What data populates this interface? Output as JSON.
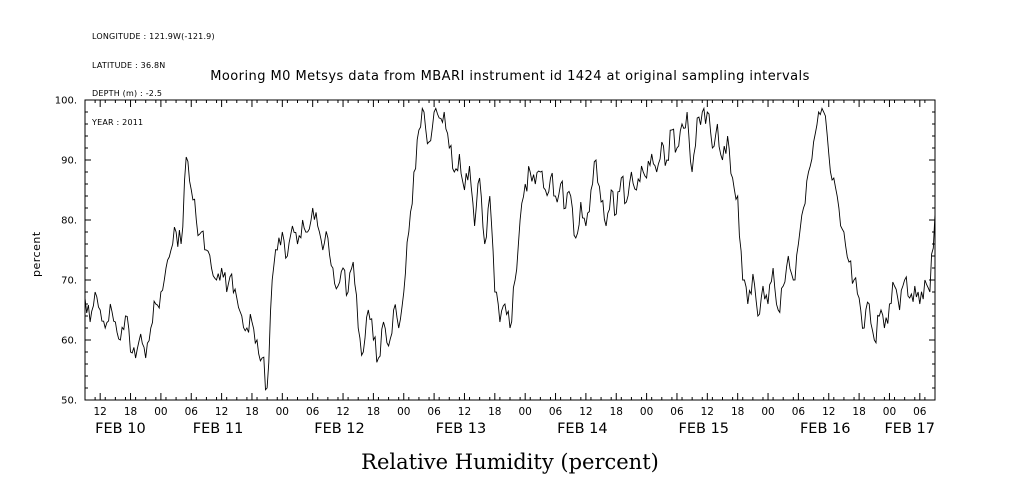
{
  "meta": {
    "lines": [
      "LONGITUDE : 121.9W(-121.9)",
      "LATITUDE : 36.8N",
      "DEPTH (m) : -2.5",
      "YEAR : 2011"
    ]
  },
  "chart_data": {
    "type": "line",
    "title": "Mooring M0 Metsys data from MBARI instrument id 1424 at original sampling intervals",
    "xlabel": "Relative Humidity (percent)",
    "ylabel": "percent",
    "xlim": [
      0,
      168
    ],
    "ylim": [
      50,
      100
    ],
    "grid": "off",
    "legend": "none",
    "line_color": "#000000",
    "background": "#ffffff",
    "y_ticks": [
      {
        "value": 100,
        "label": "100."
      },
      {
        "value": 90,
        "label": "90."
      },
      {
        "value": 80,
        "label": "80."
      },
      {
        "value": 70,
        "label": "70."
      },
      {
        "value": 60,
        "label": "60."
      },
      {
        "value": 50,
        "label": "50."
      }
    ],
    "x_ticks": [
      {
        "hour": 3,
        "label": "12"
      },
      {
        "hour": 9,
        "label": "18"
      },
      {
        "hour": 15,
        "label": "00"
      },
      {
        "hour": 21,
        "label": "06"
      },
      {
        "hour": 27,
        "label": "12"
      },
      {
        "hour": 33,
        "label": "18"
      },
      {
        "hour": 39,
        "label": "00"
      },
      {
        "hour": 45,
        "label": "06"
      },
      {
        "hour": 51,
        "label": "12"
      },
      {
        "hour": 57,
        "label": "18"
      },
      {
        "hour": 63,
        "label": "00"
      },
      {
        "hour": 69,
        "label": "06"
      },
      {
        "hour": 75,
        "label": "12"
      },
      {
        "hour": 81,
        "label": "18"
      },
      {
        "hour": 87,
        "label": "00"
      },
      {
        "hour": 93,
        "label": "06"
      },
      {
        "hour": 99,
        "label": "12"
      },
      {
        "hour": 105,
        "label": "18"
      },
      {
        "hour": 111,
        "label": "00"
      },
      {
        "hour": 117,
        "label": "06"
      },
      {
        "hour": 123,
        "label": "12"
      },
      {
        "hour": 129,
        "label": "18"
      },
      {
        "hour": 135,
        "label": "00"
      },
      {
        "hour": 141,
        "label": "06"
      },
      {
        "hour": 147,
        "label": "12"
      },
      {
        "hour": 153,
        "label": "18"
      },
      {
        "hour": 159,
        "label": "00"
      },
      {
        "hour": 165,
        "label": "06"
      }
    ],
    "date_labels": [
      {
        "hour": 7,
        "label": "FEB 10"
      },
      {
        "hour": 26.3,
        "label": "FEB 11"
      },
      {
        "hour": 50.3,
        "label": "FEB 12"
      },
      {
        "hour": 74.3,
        "label": "FEB 13"
      },
      {
        "hour": 98.3,
        "label": "FEB 14"
      },
      {
        "hour": 122.3,
        "label": "FEB 15"
      },
      {
        "hour": 146.3,
        "label": "FEB 16"
      },
      {
        "hour": 163,
        "label": "FEB 17"
      }
    ],
    "noise_amplitude": 2.0,
    "series": [
      {
        "name": "relative_humidity_percent",
        "start_hour": 0,
        "step_hours": 1,
        "values": [
          67,
          63,
          68,
          65,
          62,
          66,
          63,
          60,
          64,
          58,
          57,
          61,
          57,
          62,
          66,
          68,
          72,
          75,
          78,
          76,
          90.5,
          85,
          80,
          78,
          75,
          72,
          70,
          72,
          68,
          71,
          67,
          64,
          62,
          63,
          60,
          57,
          52,
          70,
          75,
          78,
          74,
          79,
          76,
          80,
          78,
          82,
          79,
          75,
          77,
          72,
          69,
          72,
          68,
          73,
          62,
          58,
          65,
          60,
          57,
          63,
          59,
          65,
          62,
          68,
          78,
          88,
          95,
          98,
          93,
          98,
          97,
          98,
          92,
          88,
          91,
          85,
          89,
          79,
          87,
          76,
          84,
          68,
          63,
          66,
          62,
          70,
          80,
          86,
          88,
          86,
          88,
          85,
          87,
          84,
          86,
          82,
          84,
          77,
          83,
          79,
          85,
          90,
          83,
          79,
          85,
          81,
          87,
          83,
          88,
          85,
          89,
          87,
          91,
          88,
          93,
          90,
          95,
          92,
          96,
          98,
          88,
          97,
          98,
          98,
          92,
          96,
          90,
          94,
          87,
          84,
          70,
          66,
          71,
          64,
          69,
          66,
          72,
          65,
          69,
          74,
          70,
          76,
          82,
          88,
          93,
          98,
          98,
          91,
          87,
          82,
          78,
          73,
          70,
          67,
          62,
          66,
          60,
          64,
          62,
          66,
          69,
          65,
          70,
          67,
          69,
          66,
          70,
          68,
          81
        ]
      }
    ]
  }
}
